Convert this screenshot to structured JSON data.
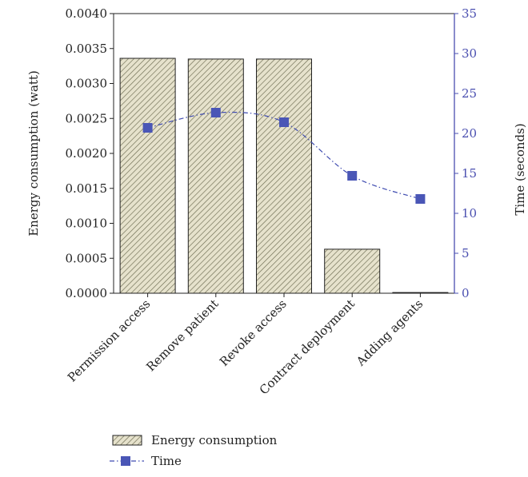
{
  "chart_data": {
    "type": "bar",
    "categories": [
      "Permission access",
      "Remove patient",
      "Revoke access",
      "Contract deployment",
      "Adding agents"
    ],
    "series": [
      {
        "name": "Energy consumption",
        "type": "bar",
        "axis": "left",
        "values": [
          0.00336,
          0.00335,
          0.00335,
          0.00063,
          1e-05
        ]
      },
      {
        "name": "Time",
        "type": "line",
        "axis": "right",
        "values": [
          20.7,
          22.6,
          21.4,
          14.7,
          11.8
        ]
      }
    ],
    "ylabel": "Energy consumption (watt)",
    "y2label": "Time (seconds)",
    "ylim": [
      0,
      0.004
    ],
    "y2lim": [
      0,
      35
    ],
    "y_ticks": [
      "0.0000",
      "0.0005",
      "0.0010",
      "0.0015",
      "0.0020",
      "0.0025",
      "0.0030",
      "0.0035",
      "0.0040"
    ],
    "y2_ticks": [
      "0",
      "5",
      "10",
      "15",
      "20",
      "25",
      "30",
      "35"
    ],
    "legend_position": "bottom-left",
    "colors": {
      "bar_fill": "#e6e2cc",
      "bar_hatch": "#6b6a50",
      "line": "#3f4bb0",
      "marker": "#4a56b6",
      "right_axis": "#4a4fb0"
    }
  }
}
